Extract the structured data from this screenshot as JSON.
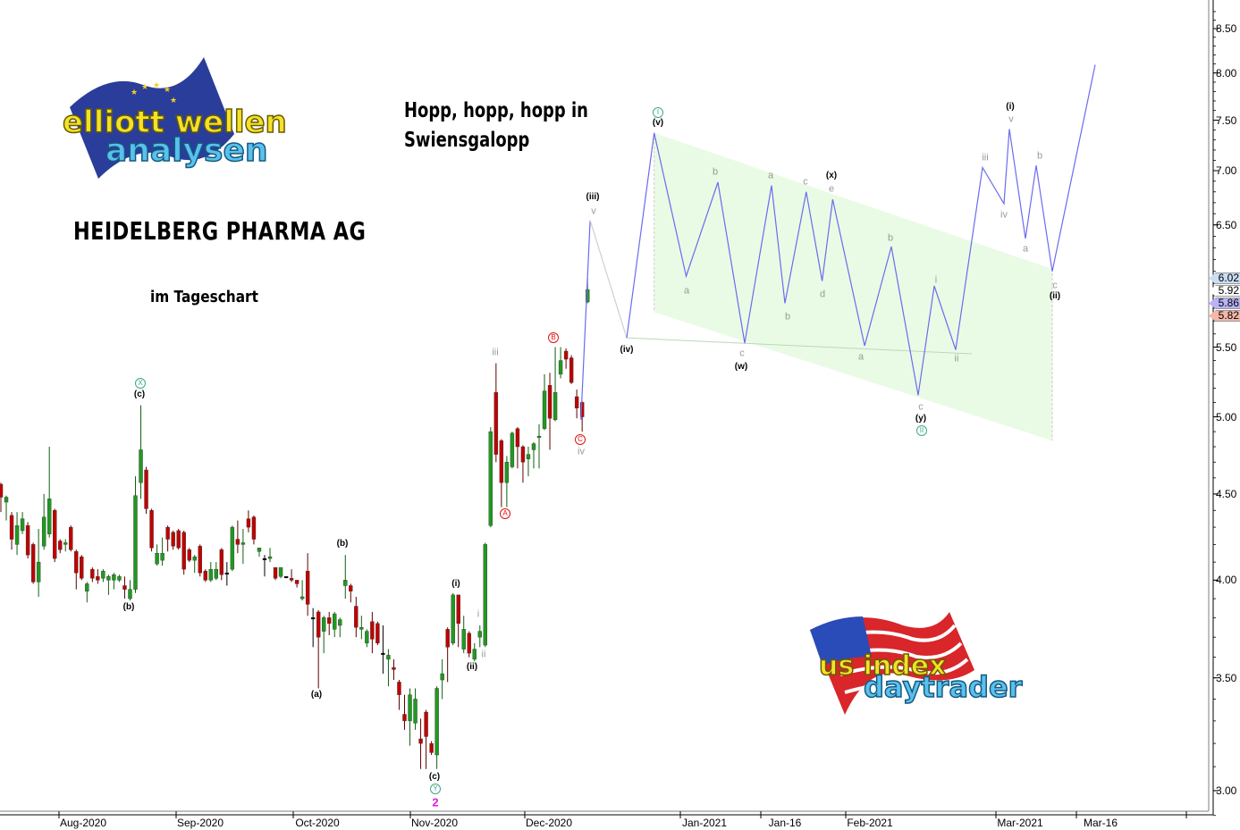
{
  "titles": {
    "headline_line1": "Hopp, hopp, hopp in",
    "headline_line2": "Swiensgalopp",
    "stock": "HEIDELBERG PHARMA AG",
    "timeframe": "im Tageschart"
  },
  "logos": {
    "top_left": "elliott wellen analysen",
    "bottom_right": "us index daytrader"
  },
  "colors": {
    "up_candle": "#1f9a1f",
    "down_candle": "#c00000",
    "forecast_line": "#6b6bf0",
    "channel_fill": "#e9fbe4",
    "wave_teal": "#3aa88a",
    "wave_red": "#e01010",
    "wave_magenta": "#e020e0"
  },
  "chart_data": {
    "type": "candlestick",
    "y_scale": "log",
    "ylim": [
      2.85,
      8.75
    ],
    "y_ticks": [
      "8.50",
      "8.00",
      "7.50",
      "7.00",
      "6.50",
      "5.50",
      "5.00",
      "4.50",
      "4.00",
      "3.50",
      "3.00"
    ],
    "x_ticks": [
      {
        "label": "Aug-2020",
        "date": "2020-08-03"
      },
      {
        "label": "Sep-2020",
        "date": "2020-09-01"
      },
      {
        "label": "Oct-2020",
        "date": "2020-10-01"
      },
      {
        "label": "Nov-2020",
        "date": "2020-11-02"
      },
      {
        "label": "Dec-2020",
        "date": "2020-12-01"
      },
      {
        "label": "Jan-2021",
        "date": "2021-01-04"
      },
      {
        "label": "Jan-16",
        "date": "2021-01-16"
      },
      {
        "label": "Feb-2021",
        "date": "2021-02-01"
      },
      {
        "label": "Mar-2021",
        "date": "2021-03-01"
      },
      {
        "label": "Mar-16",
        "date": "2021-03-16"
      }
    ],
    "grid": false,
    "candles_ohlc": [
      [
        4.56,
        4.57,
        4.39,
        4.48
      ],
      [
        4.45,
        4.49,
        4.34,
        4.48
      ],
      [
        4.37,
        4.39,
        4.17,
        4.23
      ],
      [
        4.2,
        4.39,
        4.14,
        4.31
      ],
      [
        4.28,
        4.39,
        4.26,
        4.35
      ],
      [
        4.31,
        4.33,
        4.12,
        4.14
      ],
      [
        4.2,
        4.21,
        3.98,
        3.99
      ],
      [
        3.99,
        4.29,
        3.91,
        4.1
      ],
      [
        4.19,
        4.5,
        4.17,
        4.36
      ],
      [
        4.26,
        4.8,
        4.24,
        4.47
      ],
      [
        4.4,
        4.41,
        4.1,
        4.12
      ],
      [
        4.22,
        4.23,
        4.15,
        4.17
      ],
      [
        4.2,
        4.23,
        4.16,
        4.21
      ],
      [
        4.3,
        4.31,
        4.16,
        4.17
      ],
      [
        4.16,
        4.17,
        3.95,
        4.04
      ],
      [
        4.13,
        4.14,
        4.0,
        4.01
      ],
      [
        3.94,
        3.99,
        3.88,
        3.98
      ],
      [
        4.06,
        4.07,
        3.99,
        4.01
      ],
      [
        4.02,
        4.06,
        3.98,
        4.0
      ],
      [
        4.01,
        4.06,
        3.99,
        4.05
      ],
      [
        4.0,
        4.03,
        3.92,
        4.02
      ],
      [
        4.0,
        4.04,
        3.95,
        4.03
      ],
      [
        4.0,
        4.03,
        3.99,
        4.02
      ],
      [
        3.97,
        4.02,
        3.9,
        3.95
      ],
      [
        3.9,
        4.0,
        3.89,
        3.95
      ],
      [
        3.95,
        4.61,
        3.93,
        4.49
      ],
      [
        4.57,
        5.08,
        4.47,
        4.78
      ],
      [
        4.65,
        4.67,
        4.38,
        4.41
      ],
      [
        4.4,
        4.41,
        4.16,
        4.18
      ],
      [
        4.09,
        4.2,
        4.08,
        4.15
      ],
      [
        4.11,
        4.24,
        4.08,
        4.15
      ],
      [
        4.3,
        4.31,
        4.16,
        4.23
      ],
      [
        4.27,
        4.28,
        4.17,
        4.19
      ],
      [
        4.28,
        4.29,
        4.17,
        4.18
      ],
      [
        4.27,
        4.28,
        4.03,
        4.06
      ],
      [
        4.17,
        4.18,
        4.1,
        4.11
      ],
      [
        4.11,
        4.14,
        4.04,
        4.13
      ],
      [
        4.19,
        4.2,
        4.02,
        4.04
      ],
      [
        4.05,
        4.06,
        3.99,
        4.0
      ],
      [
        4.0,
        4.1,
        3.99,
        4.06
      ],
      [
        4.01,
        4.1,
        4.0,
        4.06
      ],
      [
        4.17,
        4.18,
        4.0,
        4.03
      ],
      [
        4.04,
        4.1,
        3.97,
        4.04
      ],
      [
        4.06,
        4.31,
        4.05,
        4.3
      ],
      [
        4.23,
        4.34,
        4.15,
        4.2
      ],
      [
        4.2,
        4.29,
        4.09,
        4.21
      ],
      [
        4.35,
        4.4,
        4.27,
        4.3
      ],
      [
        4.36,
        4.37,
        4.2,
        4.23
      ],
      [
        4.16,
        4.18,
        4.13,
        4.18
      ],
      [
        4.12,
        4.14,
        4.02,
        4.12
      ],
      [
        4.12,
        4.18,
        4.1,
        4.13
      ],
      [
        4.07,
        4.07,
        4.0,
        4.01
      ],
      [
        4.02,
        4.07,
        4.01,
        4.07
      ],
      [
        4.02,
        4.02,
        4.01,
        4.02
      ],
      [
        4.01,
        4.06,
        3.99,
        4.0
      ],
      [
        4.0,
        4.0,
        3.96,
        3.98
      ],
      [
        3.9,
        4.0,
        3.89,
        3.91
      ],
      [
        4.05,
        4.15,
        3.81,
        3.87
      ],
      [
        3.8,
        3.85,
        3.65,
        3.8
      ],
      [
        3.83,
        3.84,
        3.45,
        3.7
      ],
      [
        3.73,
        3.81,
        3.62,
        3.8
      ],
      [
        3.8,
        3.83,
        3.71,
        3.77
      ],
      [
        3.74,
        3.83,
        3.7,
        3.82
      ],
      [
        3.76,
        3.8,
        3.7,
        3.79
      ],
      [
        3.97,
        4.14,
        3.9,
        4.0
      ],
      [
        3.97,
        3.98,
        3.88,
        3.94
      ],
      [
        3.86,
        3.91,
        3.7,
        3.75
      ],
      [
        3.74,
        3.81,
        3.69,
        3.75
      ],
      [
        3.67,
        3.74,
        3.65,
        3.73
      ],
      [
        3.78,
        3.83,
        3.62,
        3.69
      ],
      [
        3.77,
        3.78,
        3.66,
        3.67
      ],
      [
        3.62,
        3.76,
        3.52,
        3.62
      ],
      [
        3.59,
        3.64,
        3.46,
        3.61
      ],
      [
        3.55,
        3.59,
        3.49,
        3.54
      ],
      [
        3.48,
        3.49,
        3.35,
        3.42
      ],
      [
        3.33,
        3.42,
        3.26,
        3.3
      ],
      [
        3.3,
        3.45,
        3.19,
        3.42
      ],
      [
        3.29,
        3.45,
        3.26,
        3.4
      ],
      [
        3.22,
        3.31,
        3.09,
        3.2
      ],
      [
        3.34,
        3.35,
        3.09,
        3.23
      ],
      [
        3.2,
        3.21,
        3.15,
        3.16
      ],
      [
        3.15,
        3.46,
        3.09,
        3.45
      ],
      [
        3.49,
        3.59,
        3.4,
        3.52
      ],
      [
        3.74,
        3.75,
        3.48,
        3.65
      ],
      [
        3.67,
        3.93,
        3.66,
        3.92
      ],
      [
        3.92,
        3.92,
        3.65,
        3.77
      ],
      [
        3.64,
        3.81,
        3.62,
        3.74
      ],
      [
        3.72,
        3.73,
        3.6,
        3.62
      ],
      [
        3.59,
        3.67,
        3.58,
        3.64
      ],
      [
        3.7,
        3.76,
        3.65,
        3.73
      ],
      [
        3.66,
        4.21,
        3.65,
        4.2
      ],
      [
        4.31,
        4.93,
        4.3,
        4.9
      ],
      [
        5.17,
        5.38,
        4.7,
        4.75
      ],
      [
        4.84,
        4.85,
        4.42,
        4.57
      ],
      [
        4.57,
        4.74,
        4.42,
        4.7
      ],
      [
        4.67,
        4.9,
        4.66,
        4.89
      ],
      [
        4.92,
        4.93,
        4.66,
        4.8
      ],
      [
        4.8,
        4.81,
        4.57,
        4.7
      ],
      [
        4.72,
        4.8,
        4.61,
        4.75
      ],
      [
        4.78,
        4.83,
        4.66,
        4.82
      ],
      [
        4.86,
        4.95,
        4.66,
        4.87
      ],
      [
        4.92,
        5.3,
        4.91,
        5.18
      ],
      [
        5.22,
        5.31,
        4.78,
        4.99
      ],
      [
        4.98,
        5.5,
        4.97,
        5.17
      ],
      [
        5.3,
        5.5,
        5.27,
        5.4
      ],
      [
        5.47,
        5.49,
        5.34,
        5.41
      ],
      [
        5.42,
        5.44,
        5.23,
        5.24
      ],
      [
        5.14,
        5.19,
        4.99,
        5.06
      ],
      [
        5.1,
        5.11,
        4.9,
        5.0
      ],
      [
        5.85,
        6.04,
        5.84,
        5.95
      ]
    ],
    "forecast_path": [
      [
        "2020-12-08",
        4.98
      ],
      [
        "2020-12-10",
        6.54
      ]
    ],
    "forecast_connector": [
      [
        "2020-12-10",
        6.54
      ],
      [
        "2020-12-18",
        5.57
      ]
    ],
    "forecast_main": [
      [
        "2020-12-18",
        5.57
      ],
      [
        "2020-12-24",
        7.37
      ],
      [
        "2020-12-31",
        6.06
      ],
      [
        "2021-01-06",
        6.89
      ],
      [
        "2021-01-10",
        5.53
      ],
      [
        "2021-01-14",
        6.86
      ],
      [
        "2021-01-16",
        5.84
      ],
      [
        "2021-01-20",
        6.8
      ],
      [
        "2021-01-23",
        6.02
      ],
      [
        "2021-01-25",
        6.73
      ],
      [
        "2021-01-31",
        5.51
      ],
      [
        "2021-02-05",
        6.31
      ],
      [
        "2021-02-10",
        5.15
      ],
      [
        "2021-02-13",
        5.98
      ],
      [
        "2021-02-17",
        5.48
      ],
      [
        "2021-02-22",
        7.03
      ],
      [
        "2021-02-26",
        6.69
      ],
      [
        "2021-02-27",
        7.41
      ],
      [
        "2021-03-02",
        6.38
      ],
      [
        "2021-03-04",
        7.05
      ],
      [
        "2021-03-07",
        6.1
      ],
      [
        "2021-03-15",
        8.09
      ]
    ],
    "channel": {
      "upper": [
        [
          "2020-12-24",
          7.37
        ],
        [
          "2021-03-07",
          6.12
        ]
      ],
      "lower": [
        [
          "2020-12-24",
          5.77
        ],
        [
          "2021-03-07",
          4.84
        ]
      ]
    },
    "support_line": [
      [
        "2020-12-18",
        5.57
      ],
      [
        "2021-02-20",
        5.45
      ]
    ],
    "price_tags": [
      {
        "value": "6.02",
        "color": "#c9def5"
      },
      {
        "value": "5.92",
        "color": "#ffffff"
      },
      {
        "value": "5.86",
        "color": "#b9b2f5"
      },
      {
        "value": "5.82",
        "color": "#f5b7a8"
      }
    ],
    "wave_labels": [
      {
        "text": "X",
        "kind": "circ-teal"
      },
      {
        "text": "(c)",
        "kind": "bold"
      },
      {
        "text": "(b)",
        "kind": "bold"
      },
      {
        "text": "(a)",
        "kind": "bold"
      },
      {
        "text": "(b)",
        "kind": "bold"
      },
      {
        "text": "(c)",
        "kind": "bold"
      },
      {
        "text": "Y",
        "kind": "circ-teal"
      },
      {
        "text": "2",
        "kind": "magenta"
      },
      {
        "text": "(i)",
        "kind": "bold"
      },
      {
        "text": "(ii)",
        "kind": "bold"
      },
      {
        "text": "i",
        "kind": "gray"
      },
      {
        "text": "ii",
        "kind": "gray"
      },
      {
        "text": "iii",
        "kind": "gray"
      },
      {
        "text": "A",
        "kind": "circ-red"
      },
      {
        "text": "B",
        "kind": "circ-red"
      },
      {
        "text": "C",
        "kind": "circ-red"
      },
      {
        "text": "iv",
        "kind": "gray"
      },
      {
        "text": "(iii)",
        "kind": "bold"
      },
      {
        "text": "v",
        "kind": "gray"
      },
      {
        "text": "(iv)",
        "kind": "bold"
      },
      {
        "text": "I",
        "kind": "circ-teal"
      },
      {
        "text": "(v)",
        "kind": "bold"
      },
      {
        "text": "a",
        "kind": "gray"
      },
      {
        "text": "b",
        "kind": "gray"
      },
      {
        "text": "c",
        "kind": "gray"
      },
      {
        "text": "(w)",
        "kind": "bold"
      },
      {
        "text": "a",
        "kind": "gray"
      },
      {
        "text": "b",
        "kind": "gray"
      },
      {
        "text": "c",
        "kind": "gray"
      },
      {
        "text": "d",
        "kind": "gray"
      },
      {
        "text": "(x)",
        "kind": "bold"
      },
      {
        "text": "e",
        "kind": "gray"
      },
      {
        "text": "a",
        "kind": "gray"
      },
      {
        "text": "b",
        "kind": "gray"
      },
      {
        "text": "c",
        "kind": "gray"
      },
      {
        "text": "(y)",
        "kind": "bold"
      },
      {
        "text": "II",
        "kind": "circ-teal"
      },
      {
        "text": "i",
        "kind": "gray"
      },
      {
        "text": "ii",
        "kind": "gray"
      },
      {
        "text": "iii",
        "kind": "gray"
      },
      {
        "text": "iv",
        "kind": "gray"
      },
      {
        "text": "(i)",
        "kind": "bold"
      },
      {
        "text": "v",
        "kind": "gray"
      },
      {
        "text": "a",
        "kind": "gray"
      },
      {
        "text": "b",
        "kind": "gray"
      },
      {
        "text": "c",
        "kind": "gray"
      },
      {
        "text": "(ii)",
        "kind": "bold"
      }
    ]
  }
}
